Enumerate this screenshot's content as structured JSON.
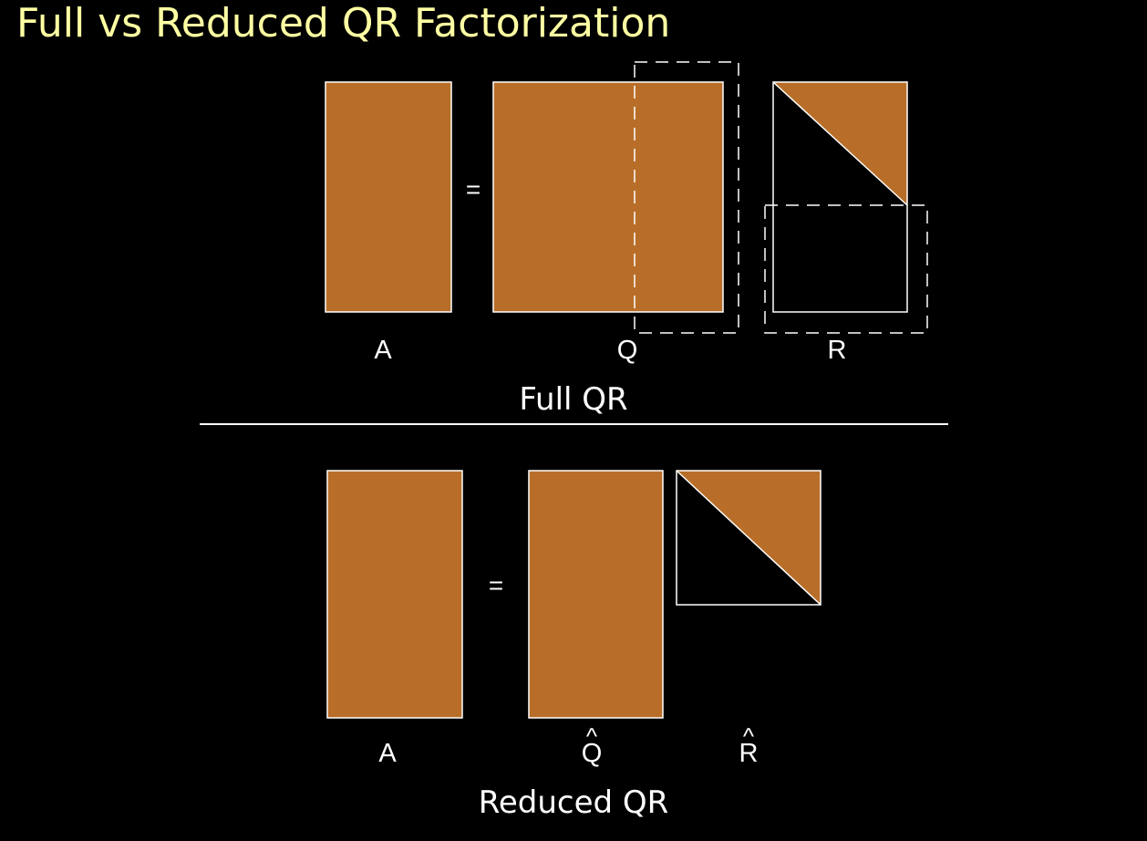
{
  "slide": {
    "title": "Full vs Reduced QR Factorization",
    "colors": {
      "background": "#000000",
      "title": "#ffffa3",
      "matrix_fill": "#b86e28",
      "stroke": "#ffffff"
    }
  },
  "full_qr": {
    "caption": "Full QR",
    "equals": "=",
    "labels": {
      "a": "A",
      "q": "Q",
      "r": "R"
    }
  },
  "reduced_qr": {
    "caption": "Reduced QR",
    "equals": "=",
    "labels": {
      "a": "A",
      "q": "Q",
      "r": "R",
      "hat": "^"
    }
  }
}
